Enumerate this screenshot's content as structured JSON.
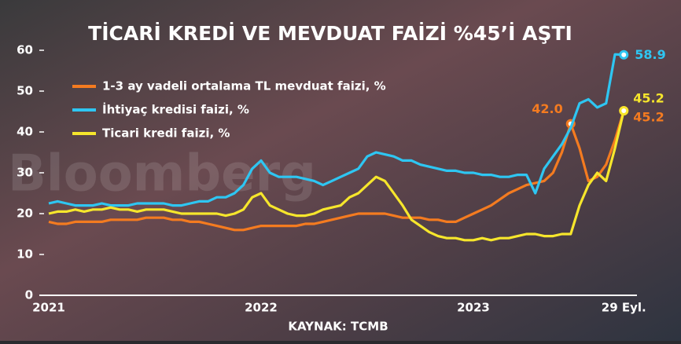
{
  "chart_data": {
    "type": "line",
    "title": "TİCARİ KREDİ VE MEVDUAT FAİZİ %45’İ AŞTI",
    "source": "KAYNAK: TCMB",
    "watermark": "Bloomberg",
    "categories": [
      "2021",
      null,
      null,
      null,
      null,
      null,
      null,
      null,
      null,
      null,
      null,
      null,
      null,
      null,
      null,
      null,
      null,
      null,
      null,
      null,
      null,
      null,
      null,
      null,
      "2022",
      null,
      null,
      null,
      null,
      null,
      null,
      null,
      null,
      null,
      null,
      null,
      null,
      null,
      null,
      null,
      null,
      null,
      null,
      null,
      null,
      null,
      null,
      null,
      "2023",
      null,
      null,
      null,
      null,
      null,
      null,
      null,
      null,
      null,
      null,
      null,
      null,
      null,
      null,
      null,
      null,
      "29 Eyl."
    ],
    "ylim": [
      0,
      60
    ],
    "yticks": [
      0,
      10,
      20,
      30,
      40,
      50,
      60
    ],
    "series": [
      {
        "name": "1-3 ay vadeli ortalama TL mevduat faizi, %",
        "color": "#f47b20",
        "values": [
          18,
          17.5,
          17.5,
          18,
          18,
          18,
          18,
          18.5,
          18.5,
          18.5,
          18.5,
          19,
          19,
          19,
          18.5,
          18.5,
          18,
          18,
          17.5,
          17,
          16.5,
          16,
          16,
          16.5,
          17,
          17,
          17,
          17,
          17,
          17.5,
          17.5,
          18,
          18.5,
          19,
          19.5,
          20,
          20,
          20,
          20,
          19.5,
          19,
          19,
          19,
          18.5,
          18.5,
          18,
          18,
          19,
          20,
          21,
          22,
          23.5,
          25,
          26,
          27,
          27.5,
          28,
          30,
          35,
          42,
          36,
          28,
          29,
          32,
          38,
          45.2
        ],
        "value_labels": [
          null,
          null,
          null,
          null,
          null,
          null,
          null,
          null,
          null,
          null,
          null,
          null,
          null,
          null,
          null,
          null,
          null,
          null,
          null,
          null,
          null,
          null,
          null,
          null,
          null,
          null,
          null,
          null,
          null,
          null,
          null,
          null,
          null,
          null,
          null,
          null,
          null,
          null,
          null,
          null,
          null,
          null,
          null,
          null,
          null,
          null,
          null,
          null,
          null,
          null,
          null,
          null,
          null,
          null,
          null,
          null,
          null,
          null,
          null,
          "42.0",
          null,
          null,
          null,
          null,
          null,
          "45.2"
        ]
      },
      {
        "name": "İhtiyaç kredisi faizi, %",
        "color": "#2ec6f2",
        "values": [
          22.5,
          23,
          22.5,
          22,
          22,
          22,
          22.5,
          22,
          22,
          22,
          22.5,
          22.5,
          22.5,
          22.5,
          22,
          22,
          22.5,
          23,
          23,
          24,
          24,
          25,
          27,
          31,
          33,
          30,
          29,
          29,
          29,
          28.5,
          28,
          27,
          28,
          29,
          30,
          31,
          34,
          35,
          34.5,
          34,
          33,
          33,
          32,
          31.5,
          31,
          30.5,
          30.5,
          30,
          30,
          29.5,
          29.5,
          29,
          29,
          29.5,
          29.5,
          25,
          31,
          34,
          37,
          41,
          47,
          48,
          46,
          47,
          59,
          58.9
        ],
        "value_labels": [
          null,
          null,
          null,
          null,
          null,
          null,
          null,
          null,
          null,
          null,
          null,
          null,
          null,
          null,
          null,
          null,
          null,
          null,
          null,
          null,
          null,
          null,
          null,
          null,
          null,
          null,
          null,
          null,
          null,
          null,
          null,
          null,
          null,
          null,
          null,
          null,
          null,
          null,
          null,
          null,
          null,
          null,
          null,
          null,
          null,
          null,
          null,
          null,
          null,
          null,
          null,
          null,
          null,
          null,
          null,
          null,
          null,
          null,
          null,
          null,
          null,
          null,
          null,
          null,
          null,
          "58.9"
        ]
      },
      {
        "name": "Ticari kredi faizi, %",
        "color": "#f6e62c",
        "values": [
          20,
          20.5,
          20.5,
          21,
          20.5,
          21,
          21,
          21.5,
          21,
          21,
          20.5,
          21,
          21,
          21,
          20.5,
          20,
          20,
          20,
          20,
          20,
          19.5,
          20,
          21,
          24,
          25,
          22,
          21,
          20,
          19.5,
          19.5,
          20,
          21,
          21.5,
          22,
          24,
          25,
          27,
          29,
          28,
          25,
          22,
          18.5,
          17,
          15.5,
          14.5,
          14,
          14,
          13.5,
          13.5,
          14,
          13.5,
          14,
          14,
          14.5,
          15,
          15,
          14.5,
          14.5,
          15,
          15,
          22,
          27,
          30,
          28,
          36,
          45.2
        ],
        "value_labels": [
          null,
          null,
          null,
          null,
          null,
          null,
          null,
          null,
          null,
          null,
          null,
          null,
          null,
          null,
          null,
          null,
          null,
          null,
          null,
          null,
          null,
          null,
          null,
          null,
          null,
          null,
          null,
          null,
          null,
          null,
          null,
          null,
          null,
          null,
          null,
          null,
          null,
          null,
          null,
          null,
          null,
          null,
          null,
          null,
          null,
          null,
          null,
          null,
          null,
          null,
          null,
          null,
          null,
          null,
          null,
          null,
          null,
          null,
          null,
          null,
          null,
          null,
          null,
          null,
          null,
          "45.2"
        ]
      }
    ]
  }
}
